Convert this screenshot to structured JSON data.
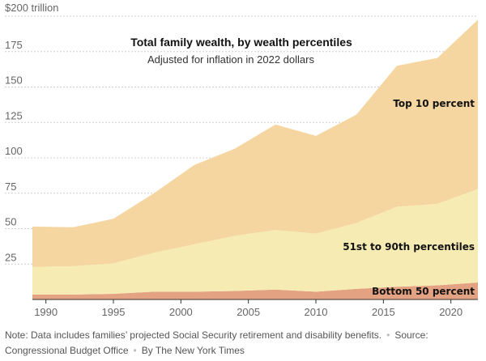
{
  "chart_data": {
    "type": "area",
    "stacked": true,
    "title": "Total family wealth, by wealth percentiles",
    "subtitle": "Adjusted for inflation in 2022 dollars",
    "y_unit_label": "$200 trillion",
    "ylim": [
      0,
      200
    ],
    "yticks": [
      25,
      50,
      75,
      100,
      125,
      150,
      175
    ],
    "xlim": [
      1989,
      2022
    ],
    "xticks": [
      1990,
      1995,
      2000,
      2005,
      2010,
      2015,
      2020
    ],
    "grid": true,
    "x": [
      1989,
      1992,
      1995,
      1998,
      2001,
      2004,
      2007,
      2010,
      2013,
      2016,
      2019,
      2022
    ],
    "series": [
      {
        "name": "Bottom 50 percent",
        "color": "#e3a383",
        "values": [
          3.5,
          3.5,
          4.0,
          5.5,
          5.5,
          6.0,
          7.0,
          5.5,
          7.5,
          9.0,
          10.0,
          12.0
        ]
      },
      {
        "name": "51st to 90th percentiles",
        "color": "#f7ebb4",
        "values": [
          19.5,
          20.0,
          21.5,
          27.5,
          33.5,
          39.0,
          42.0,
          41.0,
          46.5,
          56.5,
          57.5,
          66.0
        ]
      },
      {
        "name": "Top 10 percent",
        "color": "#f6d6a0",
        "values": [
          28.5,
          27.5,
          31.5,
          42.0,
          56.0,
          61.5,
          74.5,
          69.0,
          76.5,
          99.5,
          103.0,
          119.5
        ]
      }
    ],
    "series_labels": [
      "Bottom 50 percent",
      "51st to 90th percentiles",
      "Top 10 percent"
    ]
  },
  "footer": {
    "note": "Note: Data includes families’ projected Social Security retirement and disability benefits.",
    "source": "Source: Congressional Budget Office",
    "credit": "By The New York Times"
  }
}
